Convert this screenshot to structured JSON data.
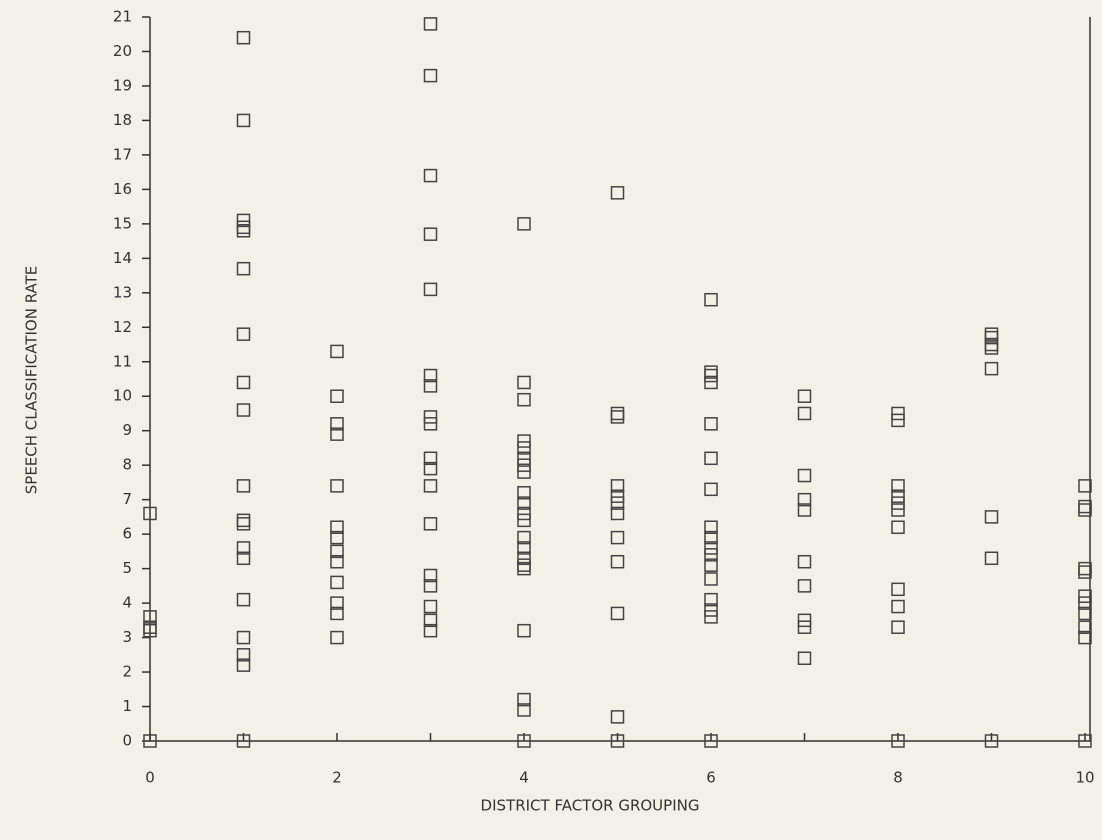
{
  "chart_data": {
    "type": "scatter",
    "x_label": "DISTRICT FACTOR GROUPING",
    "y_label": "SPEECH CLASSIFICATION RATE",
    "marker_color": "#444444",
    "x": [
      0,
      0,
      0,
      0,
      0,
      1,
      1,
      1,
      1,
      1,
      1,
      1,
      1,
      1,
      1,
      1,
      1,
      1,
      1,
      1,
      1,
      1,
      1,
      1,
      2,
      2,
      2,
      2,
      2,
      2,
      2,
      2,
      2,
      2,
      2,
      2,
      2,
      3,
      3,
      3,
      3,
      3,
      3,
      3,
      3,
      3,
      3,
      3,
      3,
      3,
      3,
      3,
      3,
      3,
      3,
      4,
      4,
      4,
      4,
      4,
      4,
      4,
      4,
      4,
      4,
      4,
      4,
      4,
      4,
      4,
      4,
      4,
      4,
      4,
      4,
      4,
      5,
      5,
      5,
      5,
      5,
      5,
      5,
      5,
      5,
      5,
      5,
      5,
      6,
      6,
      6,
      6,
      6,
      6,
      6,
      6,
      6,
      6,
      6,
      6,
      6,
      6,
      6,
      6,
      6,
      7,
      7,
      7,
      7,
      7,
      7,
      7,
      7,
      7,
      7,
      8,
      8,
      8,
      8,
      8,
      8,
      8,
      8,
      8,
      8,
      8,
      9,
      9,
      9,
      9,
      9,
      9,
      9,
      9,
      10,
      10,
      10,
      10,
      10,
      10,
      10,
      10,
      10,
      10,
      10
    ],
    "values": [
      6.6,
      3.6,
      3.3,
      3.2,
      0,
      20.4,
      18.0,
      15.1,
      14.9,
      14.8,
      13.7,
      11.8,
      10.4,
      9.6,
      7.4,
      6.4,
      6.3,
      5.6,
      5.3,
      4.1,
      3.0,
      2.5,
      2.2,
      0,
      11.3,
      10.0,
      9.2,
      8.9,
      7.4,
      6.2,
      5.9,
      5.5,
      5.2,
      4.6,
      4.0,
      3.7,
      3.0,
      20.8,
      19.3,
      16.4,
      14.7,
      13.1,
      10.6,
      10.3,
      9.4,
      9.2,
      8.2,
      7.9,
      7.4,
      6.3,
      4.8,
      4.5,
      3.9,
      3.5,
      3.2,
      15.0,
      10.4,
      9.9,
      8.7,
      8.5,
      8.2,
      8.0,
      7.8,
      7.2,
      6.9,
      6.6,
      6.4,
      5.9,
      5.6,
      5.3,
      5.1,
      5.0,
      3.2,
      1.2,
      0.9,
      0,
      15.9,
      9.5,
      9.4,
      7.4,
      7.1,
      6.9,
      6.6,
      5.9,
      5.2,
      3.7,
      0.7,
      0,
      12.8,
      10.7,
      10.6,
      10.4,
      9.2,
      8.2,
      7.3,
      6.2,
      5.9,
      5.6,
      5.4,
      5.1,
      4.7,
      4.1,
      3.8,
      3.6,
      0,
      10.0,
      9.5,
      7.7,
      7.0,
      6.7,
      5.2,
      4.5,
      3.5,
      3.3,
      2.4,
      9.5,
      9.3,
      7.4,
      7.1,
      6.9,
      6.7,
      6.2,
      4.4,
      3.9,
      3.3,
      0,
      11.8,
      11.7,
      11.5,
      11.4,
      10.8,
      6.5,
      5.3,
      0,
      7.4,
      6.8,
      6.7,
      5.0,
      4.9,
      4.2,
      4.0,
      3.7,
      3.3,
      3.0,
      0
    ],
    "xlim": [
      0,
      10
    ],
    "ylim": [
      0,
      21
    ],
    "xticks": [
      0,
      2,
      4,
      6,
      8,
      10
    ],
    "xminorticks": [
      1,
      3,
      5,
      7,
      9
    ],
    "yticks": [
      0,
      1,
      2,
      3,
      4,
      5,
      6,
      7,
      8,
      9,
      10,
      11,
      12,
      13,
      14,
      15,
      16,
      17,
      18,
      19,
      20,
      21
    ]
  }
}
